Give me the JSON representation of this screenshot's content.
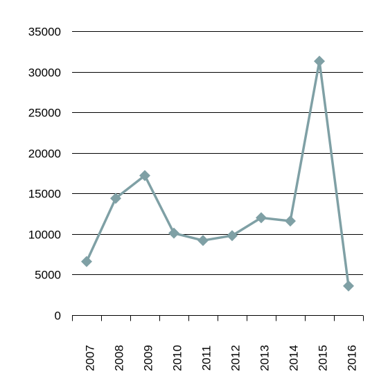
{
  "chart_data": {
    "type": "line",
    "title": "",
    "xlabel": "",
    "ylabel": "",
    "categories": [
      "2007",
      "2008",
      "2009",
      "2010",
      "2011",
      "2012",
      "2013",
      "2014",
      "2015",
      "2016"
    ],
    "series": [
      {
        "values": [
          6600,
          14400,
          17200,
          10100,
          9200,
          9800,
          12000,
          11600,
          31300,
          3600
        ],
        "color": "#7fa0a5",
        "marker": "diamond"
      }
    ],
    "ylim": [
      0,
      35000
    ],
    "yticks": [
      "0",
      "5000",
      "10000",
      "15000",
      "20000",
      "25000",
      "30000",
      "35000"
    ],
    "grid": "horizontal",
    "legend": "none"
  }
}
